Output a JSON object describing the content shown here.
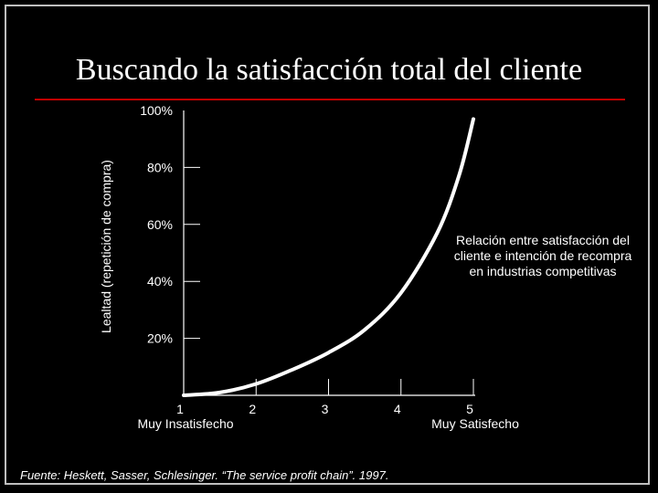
{
  "slide": {
    "title": "Buscando la satisfacción total del cliente",
    "source": "Fuente: Heskett, Sasser, Schlesinger. “The service profit chain”. 1997.",
    "annotation": "Relación entre satisfacción del cliente e intención de recompra en industrias competitivas",
    "accent_color": "#c00000",
    "background_color": "#000000"
  },
  "chart_data": {
    "type": "line",
    "title": "",
    "xlabel": "",
    "ylabel": "Lealtad (repetición de compra)",
    "x_ticks": [
      "1",
      "2",
      "3",
      "4",
      "5"
    ],
    "x_tick_captions": [
      {
        "tick": "1",
        "text": "Muy Insatisfecho"
      },
      {
        "tick": "5",
        "text": "Muy Satisfecho"
      }
    ],
    "y_ticks": [
      "20%",
      "40%",
      "60%",
      "80%",
      "100%"
    ],
    "xlim": [
      1,
      5
    ],
    "ylim": [
      0,
      100
    ],
    "grid": false,
    "series": [
      {
        "color": "#ffffff",
        "x": [
          1.0,
          1.5,
          2.0,
          2.5,
          3.0,
          3.5,
          4.0,
          4.5,
          4.8,
          5.0
        ],
        "y": [
          0,
          1,
          4,
          9,
          15,
          23,
          36,
          57,
          77,
          97
        ]
      }
    ]
  }
}
